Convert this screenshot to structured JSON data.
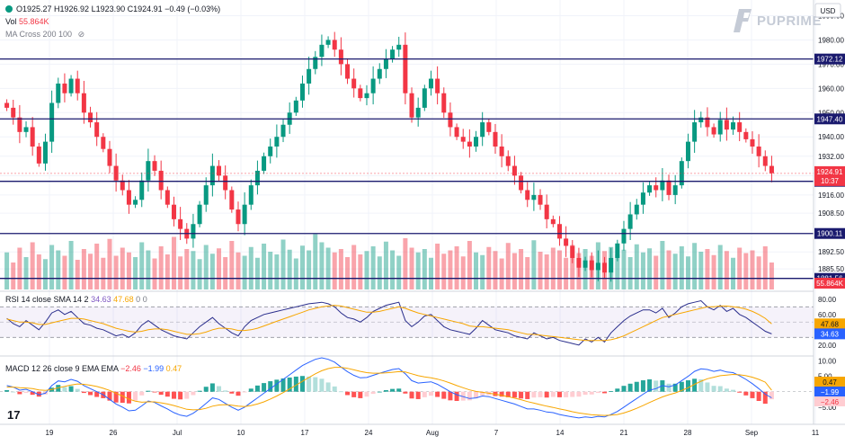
{
  "header": {
    "ohlc": "O1925.27 H1926.92 L1923.90 C1924.91 −0.49 (−0.03%)",
    "vol_label": "Vol",
    "vol_value": "55.864K",
    "ma_label": "MA Cross 200 100"
  },
  "brand": {
    "name": "PUPRIME"
  },
  "currency_button": "USD",
  "rsi_legend": {
    "label": "RSI 14 close SMA 14 2",
    "v1": "34.63",
    "v2": "47.68",
    "v3": "0",
    "v4": "0"
  },
  "macd_legend": {
    "label": "MACD 12 26 close 9 EMA EMA",
    "v1": "−2.46",
    "v2": "−1.99",
    "v3": "0.47"
  },
  "chart_data": [
    {
      "type": "candlestick",
      "name": "price",
      "ylim": [
        1877,
        1995
      ],
      "y_ticks": [
        "1990.00",
        "1980.00",
        "1970.00",
        "1960.00",
        "1950.00",
        "1940.00",
        "1932.00",
        "1924.00",
        "1916.00",
        "1908.50",
        "1900.00",
        "1892.50",
        "1885.50"
      ],
      "horizontal_levels": [
        {
          "value": 1972.12,
          "label": "1972.12"
        },
        {
          "value": 1947.4,
          "label": "1947.40"
        },
        {
          "value": 1921.65,
          "label": "1921.65"
        },
        {
          "value": 1900.11,
          "label": "1900.11"
        },
        {
          "value": 1881.56,
          "label": "1881.56"
        }
      ],
      "last_price": {
        "label": "1924.91",
        "countdown": "10:37",
        "value": 1924.91
      },
      "volume_badge": "55.864K",
      "x_labels": [
        "19",
        "26",
        "Jul",
        "10",
        "17",
        "24",
        "Aug",
        "7",
        "14",
        "21",
        "28",
        "Sep",
        "11"
      ],
      "closes": [
        1952,
        1948,
        1942,
        1944,
        1936,
        1929,
        1938,
        1954,
        1962,
        1958,
        1964,
        1958,
        1950,
        1946,
        1940,
        1935,
        1928,
        1922,
        1918,
        1912,
        1914,
        1922,
        1930,
        1926,
        1918,
        1912,
        1906,
        1902,
        1898,
        1904,
        1912,
        1920,
        1928,
        1924,
        1918,
        1910,
        1904,
        1912,
        1920,
        1926,
        1932,
        1936,
        1940,
        1945,
        1950,
        1955,
        1962,
        1968,
        1973,
        1978,
        1980,
        1976,
        1970,
        1964,
        1960,
        1956,
        1958,
        1964,
        1968,
        1972,
        1976,
        1978,
        1958,
        1948,
        1952,
        1960,
        1964,
        1958,
        1950,
        1944,
        1940,
        1938,
        1936,
        1940,
        1946,
        1942,
        1936,
        1932,
        1928,
        1924,
        1918,
        1914,
        1916,
        1912,
        1906,
        1904,
        1898,
        1895,
        1890,
        1886,
        1889,
        1885,
        1888,
        1884,
        1890,
        1896,
        1902,
        1908,
        1912,
        1917,
        1920,
        1918,
        1922,
        1916,
        1920,
        1930,
        1938,
        1946,
        1948,
        1944,
        1941,
        1947,
        1943,
        1946,
        1942,
        1939,
        1936,
        1932,
        1928,
        1925
      ],
      "volumes": [
        0.55,
        0.4,
        0.62,
        0.48,
        0.7,
        0.52,
        0.45,
        0.66,
        0.58,
        0.5,
        0.72,
        0.44,
        0.6,
        0.53,
        0.68,
        0.47,
        0.75,
        0.5,
        0.62,
        0.55,
        0.48,
        0.7,
        0.58,
        0.46,
        0.64,
        0.52,
        0.78,
        0.49,
        0.6,
        0.57,
        0.45,
        0.66,
        0.53,
        0.61,
        0.48,
        0.72,
        0.55,
        0.5,
        0.63,
        0.47,
        0.68,
        0.56,
        0.52,
        0.74,
        0.59,
        0.46,
        0.65,
        0.58,
        0.82,
        0.7,
        0.62,
        0.55,
        0.6,
        0.48,
        0.66,
        0.52,
        0.57,
        0.64,
        0.49,
        0.71,
        0.58,
        0.5,
        0.76,
        0.62,
        0.55,
        0.6,
        0.47,
        0.68,
        0.53,
        0.58,
        0.64,
        0.49,
        0.72,
        0.55,
        0.51,
        0.63,
        0.57,
        0.46,
        0.69,
        0.54,
        0.6,
        0.48,
        0.73,
        0.56,
        0.52,
        0.62,
        0.58,
        0.47,
        0.66,
        0.54,
        0.6,
        0.5,
        0.7,
        0.57,
        0.63,
        0.52,
        0.59,
        0.48,
        0.67,
        0.55,
        0.61,
        0.5,
        0.72,
        0.58,
        0.53,
        0.64,
        0.49,
        0.69,
        0.56,
        0.6,
        0.51,
        0.66,
        0.57,
        0.47,
        0.62,
        0.54,
        0.58,
        0.49,
        0.64,
        0.4
      ]
    },
    {
      "type": "line",
      "name": "RSI",
      "ylim": [
        8,
        88
      ],
      "y_ticks": [
        "80.00",
        "60.00",
        "40.00",
        "20.00"
      ],
      "band": [
        30,
        70
      ],
      "midline": 50,
      "badges": [
        "47.68",
        "34.63"
      ],
      "series": [
        {
          "name": "RSI",
          "values": [
            55,
            48,
            44,
            52,
            46,
            40,
            50,
            62,
            66,
            60,
            64,
            56,
            48,
            46,
            42,
            40,
            36,
            32,
            34,
            30,
            36,
            46,
            52,
            46,
            40,
            36,
            32,
            30,
            28,
            36,
            44,
            50,
            56,
            48,
            42,
            36,
            32,
            44,
            52,
            56,
            60,
            62,
            64,
            66,
            68,
            70,
            72,
            74,
            75,
            76,
            74,
            70,
            62,
            56,
            54,
            50,
            56,
            64,
            68,
            72,
            74,
            76,
            52,
            44,
            50,
            58,
            60,
            52,
            44,
            40,
            38,
            36,
            34,
            42,
            52,
            46,
            40,
            38,
            36,
            32,
            30,
            28,
            36,
            32,
            28,
            30,
            26,
            24,
            22,
            20,
            28,
            24,
            30,
            24,
            36,
            44,
            52,
            58,
            62,
            66,
            66,
            62,
            68,
            56,
            62,
            70,
            74,
            76,
            78,
            70,
            66,
            72,
            64,
            68,
            60,
            56,
            50,
            44,
            38,
            34.63
          ]
        },
        {
          "name": "SMA",
          "values": [
            54,
            52,
            50,
            50,
            49,
            47,
            47,
            49,
            51,
            53,
            55,
            55,
            54,
            52,
            50,
            48,
            45,
            42,
            40,
            38,
            37,
            38,
            40,
            41,
            41,
            40,
            38,
            36,
            34,
            34,
            35,
            37,
            40,
            42,
            42,
            41,
            39,
            39,
            40,
            42,
            45,
            48,
            51,
            54,
            57,
            60,
            63,
            66,
            68,
            70,
            71,
            72,
            71,
            69,
            67,
            65,
            63,
            63,
            64,
            66,
            68,
            70,
            68,
            65,
            62,
            60,
            58,
            56,
            54,
            52,
            50,
            48,
            45,
            44,
            44,
            43,
            42,
            41,
            40,
            38,
            36,
            34,
            34,
            33,
            32,
            31,
            30,
            29,
            28,
            27,
            26,
            26,
            26,
            26,
            27,
            29,
            32,
            36,
            40,
            44,
            48,
            52,
            56,
            58,
            60,
            62,
            64,
            66,
            68,
            70,
            70,
            71,
            71,
            70,
            69,
            67,
            64,
            60,
            55,
            47.68
          ]
        }
      ]
    },
    {
      "type": "bar+line",
      "name": "MACD",
      "ylim": [
        -10,
        11
      ],
      "y_ticks": [
        "10.00",
        "5.00",
        "−5.00"
      ],
      "badges": [
        "0.47",
        "−1.99",
        "−2.46"
      ],
      "series": [
        {
          "name": "MACD",
          "values": [
            2,
            1.5,
            0.5,
            0.8,
            0,
            -1,
            -0.5,
            2,
            3.5,
            3.2,
            4,
            3.4,
            2,
            1,
            0,
            -1,
            -2.5,
            -4,
            -5,
            -6.2,
            -6,
            -4.6,
            -3,
            -3.5,
            -4.6,
            -5.6,
            -6.8,
            -7.6,
            -8,
            -7,
            -5.5,
            -3.8,
            -2,
            -2.5,
            -3.8,
            -5,
            -6,
            -5,
            -3.5,
            -2,
            -0.5,
            1,
            2.5,
            4,
            5.5,
            7,
            8.5,
            9.5,
            10.5,
            11,
            10.5,
            9.6,
            8,
            6.5,
            5.3,
            4.5,
            4.6,
            5.3,
            6,
            6.6,
            7.2,
            7.5,
            5.8,
            3.6,
            2.8,
            3,
            3.2,
            2.4,
            1.2,
            0,
            -1,
            -1.6,
            -2.2,
            -2,
            -1.4,
            -1.6,
            -2.2,
            -2.8,
            -3.4,
            -4,
            -4.8,
            -5.6,
            -5.6,
            -6,
            -6.6,
            -6.8,
            -7.4,
            -7.8,
            -8.2,
            -8.5,
            -8.2,
            -8.4,
            -8,
            -8.2,
            -7.4,
            -6.4,
            -5,
            -3.6,
            -2.2,
            -0.8,
            0.5,
            1,
            2,
            1.6,
            2.2,
            3.6,
            5,
            6.6,
            7.4,
            7.2,
            6.6,
            7,
            6.4,
            6.2,
            5.2,
            4,
            2.6,
            1,
            -0.8,
            -1.99
          ]
        },
        {
          "name": "Signal",
          "values": [
            1.5,
            1.5,
            1.3,
            1.2,
            1,
            0.6,
            0.4,
            0.7,
            1.3,
            1.7,
            2.2,
            2.5,
            2.4,
            2.1,
            1.7,
            1.1,
            0.4,
            -0.5,
            -1.4,
            -2.4,
            -3.1,
            -3.4,
            -3.3,
            -3.3,
            -3.6,
            -4,
            -4.5,
            -5.1,
            -5.7,
            -5.9,
            -5.8,
            -5.4,
            -4.7,
            -4.3,
            -4.2,
            -4.4,
            -4.7,
            -4.8,
            -4.5,
            -4,
            -3.3,
            -2.4,
            -1.4,
            -0.3,
            0.9,
            2.1,
            3.4,
            4.6,
            5.8,
            6.8,
            7.5,
            7.9,
            7.9,
            7.6,
            7.1,
            6.6,
            6.2,
            6,
            6,
            6.1,
            6.3,
            6.5,
            6.4,
            5.8,
            5.2,
            4.8,
            4.5,
            4.1,
            3.5,
            2.8,
            2,
            1.3,
            0.6,
            0.1,
            -0.2,
            -0.5,
            -0.8,
            -1.2,
            -1.6,
            -2.1,
            -2.6,
            -3.2,
            -3.7,
            -4.2,
            -4.7,
            -5.1,
            -5.6,
            -6,
            -6.5,
            -6.9,
            -7.2,
            -7.5,
            -7.6,
            -7.7,
            -7.6,
            -7.4,
            -6.9,
            -6.2,
            -5.4,
            -4.5,
            -3.5,
            -2.6,
            -1.7,
            -1,
            -0.4,
            0.4,
            1.3,
            2.4,
            3.4,
            4.2,
            4.7,
            5.2,
            5.4,
            5.6,
            5.5,
            5.2,
            4.7,
            4,
            3.1,
            0.47
          ]
        }
      ]
    }
  ]
}
